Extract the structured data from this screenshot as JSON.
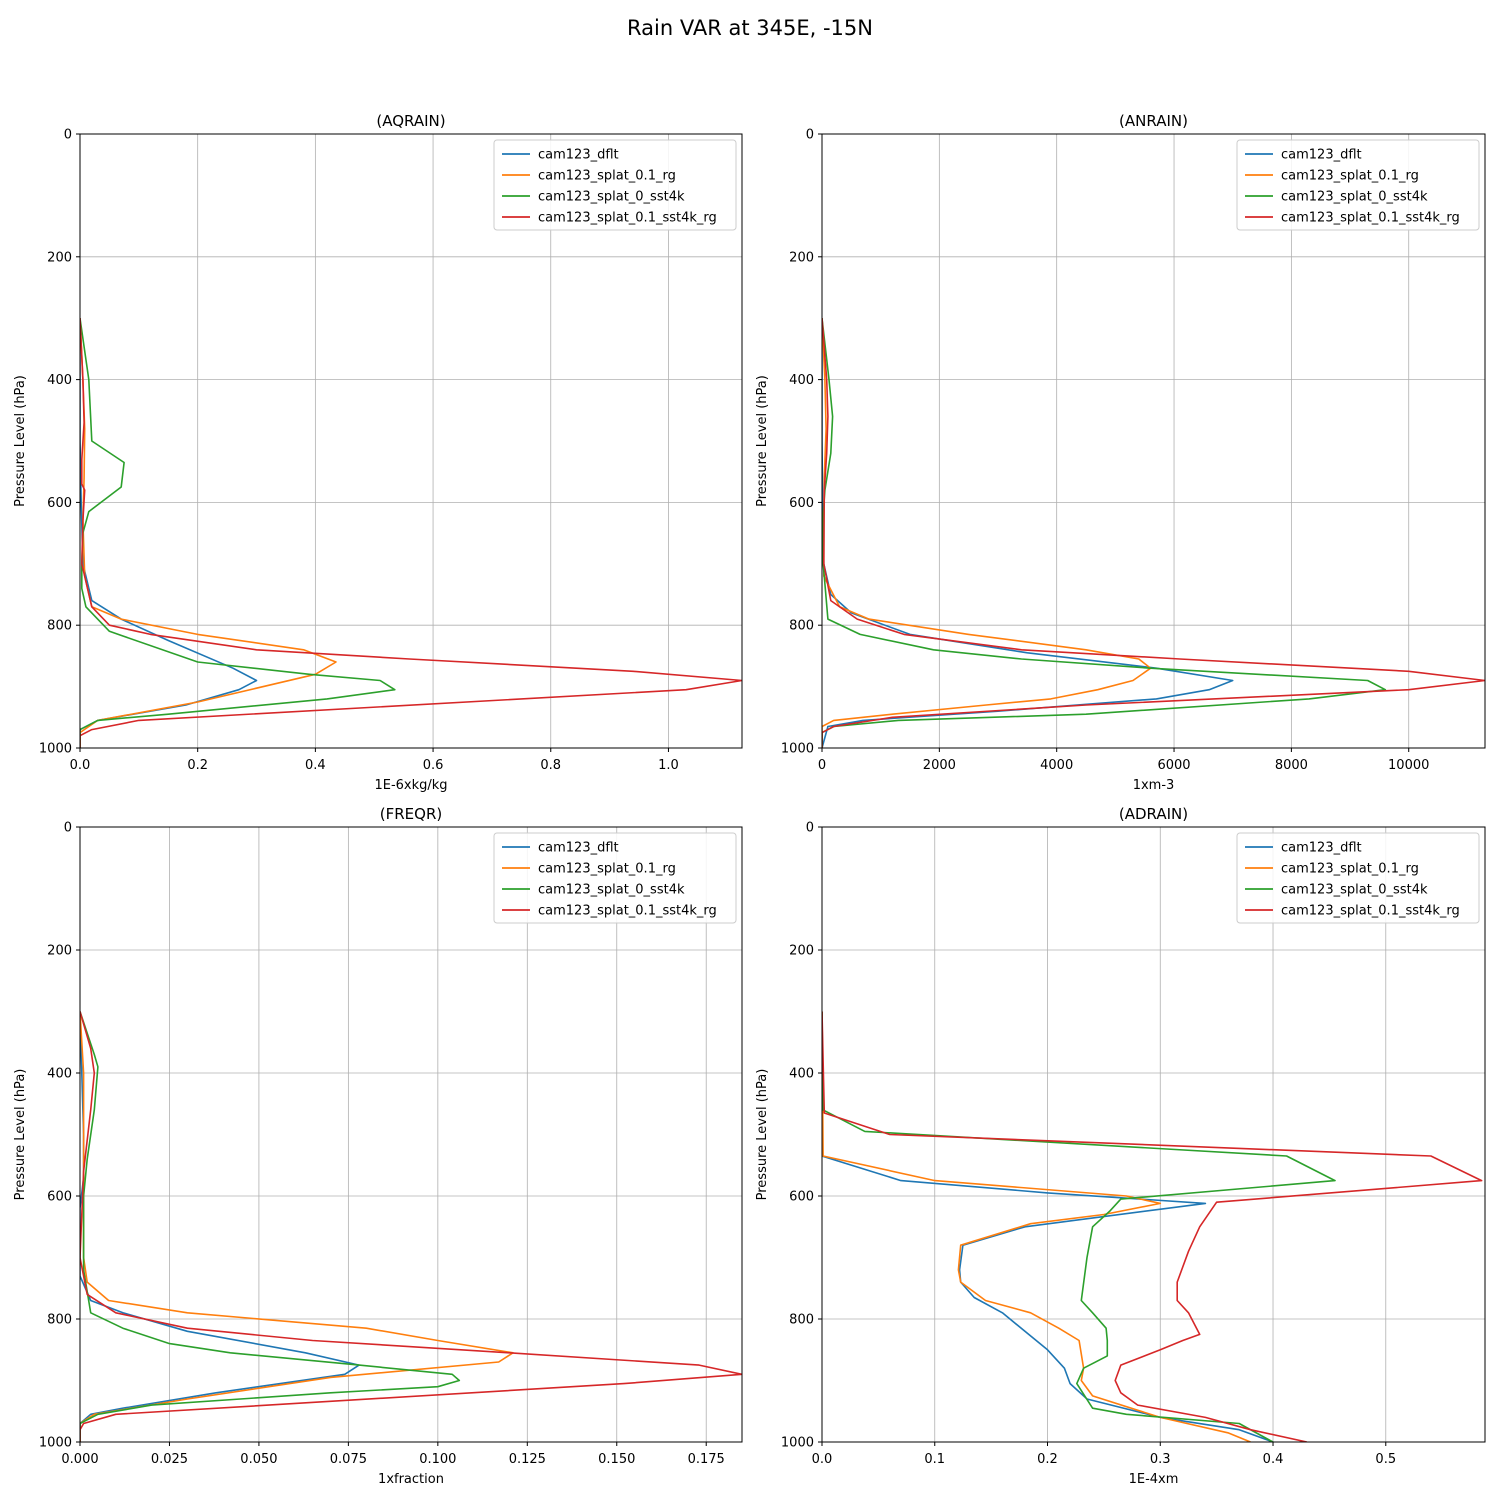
{
  "title": "Rain VAR at 345E, -15N",
  "series_colors": [
    "#1f77b4",
    "#ff7f0e",
    "#2ca02c",
    "#d62728"
  ],
  "chart_data": [
    {
      "type": "line",
      "title": "(AQRAIN)",
      "xlabel": "1E-6xkg/kg",
      "ylabel": "Pressure Level (hPa)",
      "xlim": [
        0,
        1.125
      ],
      "ylim": [
        1000,
        0
      ],
      "xticks": [
        0,
        0.2,
        0.4,
        0.6,
        0.8,
        1.0
      ],
      "xtick_labels": [
        "0.0",
        "0.2",
        "0.4",
        "0.6",
        "0.8",
        "1.0"
      ],
      "yticks": [
        0,
        200,
        400,
        600,
        800,
        1000
      ],
      "ytick_labels": [
        "0",
        "200",
        "400",
        "600",
        "800",
        "1000"
      ],
      "grid": true,
      "legend": "top-right",
      "series": [
        {
          "name": "cam123_dflt",
          "x": [
            0,
            0,
            0.002,
            0.005,
            0.02,
            0.07,
            0.15,
            0.26,
            0.3,
            0.27,
            0.18,
            0.03,
            0,
            0
          ],
          "y": [
            300,
            500,
            600,
            700,
            760,
            790,
            825,
            870,
            890,
            905,
            930,
            955,
            970,
            1000
          ]
        },
        {
          "name": "cam123_splat_0.1_rg",
          "x": [
            0,
            0.005,
            0.008,
            0.007,
            0.005,
            0.008,
            0.02,
            0.07,
            0.2,
            0.38,
            0.435,
            0.4,
            0.2,
            0.03,
            0,
            0
          ],
          "y": [
            300,
            400,
            480,
            560,
            630,
            720,
            770,
            790,
            815,
            840,
            860,
            880,
            925,
            955,
            975,
            1000
          ]
        },
        {
          "name": "cam123_splat_0_sst4k",
          "x": [
            0,
            0.015,
            0.02,
            0.075,
            0.07,
            0.015,
            0.005,
            0.003,
            0.003,
            0.01,
            0.05,
            0.2,
            0.39,
            0.51,
            0.535,
            0.42,
            0.15,
            0.03,
            0,
            0
          ],
          "y": [
            300,
            400,
            500,
            535,
            575,
            615,
            650,
            700,
            740,
            770,
            810,
            860,
            880,
            890,
            905,
            920,
            945,
            955,
            970,
            1000
          ]
        },
        {
          "name": "cam123_splat_0.1_sst4k_rg",
          "x": [
            0,
            0.005,
            0.007,
            0.003,
            0.003,
            0.008,
            0.005,
            0.003,
            0.02,
            0.05,
            0.12,
            0.3,
            0.56,
            0.94,
            1.125,
            1.03,
            0.1,
            0.02,
            0,
            0
          ],
          "y": [
            300,
            400,
            470,
            530,
            570,
            580,
            630,
            700,
            770,
            800,
            815,
            840,
            855,
            875,
            890,
            905,
            955,
            970,
            980,
            1000
          ]
        }
      ]
    },
    {
      "type": "line",
      "title": "(ANRAIN)",
      "xlabel": "1xm-3",
      "ylabel": "Pressure Level (hPa)",
      "xlim": [
        0,
        11300
      ],
      "ylim": [
        1000,
        0
      ],
      "xticks": [
        0,
        2000,
        4000,
        6000,
        8000,
        10000
      ],
      "xtick_labels": [
        "0",
        "2000",
        "4000",
        "6000",
        "8000",
        "10000"
      ],
      "yticks": [
        0,
        200,
        400,
        600,
        800,
        1000
      ],
      "ytick_labels": [
        "0",
        "200",
        "400",
        "600",
        "800",
        "1000"
      ],
      "grid": true,
      "legend": "top-right",
      "series": [
        {
          "name": "cam123_dflt",
          "x": [
            0,
            0,
            10,
            30,
            150,
            500,
            1500,
            3500,
            5700,
            7000,
            6600,
            5700,
            3000,
            700,
            100,
            0
          ],
          "y": [
            300,
            500,
            600,
            700,
            750,
            780,
            815,
            845,
            870,
            890,
            905,
            920,
            940,
            955,
            965,
            1000
          ]
        },
        {
          "name": "cam123_splat_0.1_rg",
          "x": [
            0,
            50,
            70,
            40,
            30,
            30,
            300,
            800,
            2500,
            4500,
            5400,
            5600,
            5300,
            4700,
            3900,
            2800,
            1200,
            200,
            0,
            0
          ],
          "y": [
            300,
            400,
            480,
            560,
            630,
            720,
            770,
            790,
            815,
            840,
            855,
            870,
            890,
            905,
            920,
            930,
            945,
            955,
            965,
            1000
          ]
        },
        {
          "name": "cam123_splat_0_sst4k",
          "x": [
            0,
            120,
            180,
            150,
            50,
            20,
            20,
            100,
            650,
            1900,
            3400,
            5600,
            9300,
            9600,
            8300,
            4500,
            1300,
            200,
            0,
            0
          ],
          "y": [
            300,
            400,
            460,
            520,
            580,
            620,
            700,
            790,
            815,
            840,
            855,
            870,
            890,
            905,
            920,
            945,
            955,
            965,
            975,
            1000
          ]
        },
        {
          "name": "cam123_splat_0.1_sst4k_rg",
          "x": [
            0,
            80,
            100,
            80,
            40,
            30,
            150,
            600,
            1400,
            3400,
            6100,
            10000,
            11300,
            10000,
            4500,
            1200,
            200,
            0,
            0
          ],
          "y": [
            300,
            400,
            460,
            520,
            580,
            700,
            760,
            790,
            815,
            840,
            855,
            875,
            890,
            905,
            930,
            950,
            965,
            975,
            1000
          ]
        }
      ]
    },
    {
      "type": "line",
      "title": "(FREQR)",
      "xlabel": "1xfraction",
      "ylabel": "Pressure Level (hPa)",
      "xlim": [
        0,
        0.185
      ],
      "ylim": [
        1000,
        0
      ],
      "xticks": [
        0,
        0.025,
        0.05,
        0.075,
        0.1,
        0.125,
        0.15,
        0.175
      ],
      "xtick_labels": [
        "0.000",
        "0.025",
        "0.050",
        "0.075",
        "0.100",
        "0.125",
        "0.150",
        "0.175"
      ],
      "yticks": [
        0,
        200,
        400,
        600,
        800,
        1000
      ],
      "ytick_labels": [
        "0",
        "200",
        "400",
        "600",
        "800",
        "1000"
      ],
      "grid": true,
      "legend": "top-right",
      "series": [
        {
          "name": "cam123_dflt",
          "x": [
            0,
            0.001,
            0.001,
            0,
            0,
            0.003,
            0.012,
            0.03,
            0.063,
            0.078,
            0.074,
            0.038,
            0.012,
            0.003,
            0,
            0
          ],
          "y": [
            300,
            500,
            570,
            620,
            730,
            770,
            790,
            820,
            855,
            875,
            890,
            920,
            945,
            955,
            970,
            1000
          ]
        },
        {
          "name": "cam123_splat_0.1_rg",
          "x": [
            0,
            0.001,
            0.001,
            0.001,
            0.002,
            0.008,
            0.03,
            0.08,
            0.1,
            0.121,
            0.117,
            0.07,
            0.03,
            0.004,
            0,
            0
          ],
          "y": [
            300,
            400,
            500,
            700,
            740,
            770,
            790,
            815,
            835,
            855,
            870,
            895,
            930,
            955,
            970,
            1000
          ]
        },
        {
          "name": "cam123_splat_0_sst4k",
          "x": [
            0,
            0.004,
            0.005,
            0.004,
            0.002,
            0.001,
            0.001,
            0.003,
            0.012,
            0.025,
            0.042,
            0.078,
            0.104,
            0.106,
            0.1,
            0.07,
            0.02,
            0.005,
            0,
            0
          ],
          "y": [
            300,
            370,
            390,
            460,
            540,
            600,
            720,
            790,
            815,
            840,
            855,
            875,
            890,
            900,
            910,
            920,
            940,
            955,
            970,
            1000
          ]
        },
        {
          "name": "cam123_splat_0.1_sst4k_rg",
          "x": [
            0,
            0.003,
            0.004,
            0.003,
            0.001,
            0,
            0.002,
            0.01,
            0.03,
            0.065,
            0.12,
            0.173,
            0.185,
            0.152,
            0.01,
            0.001,
            0,
            0
          ],
          "y": [
            300,
            360,
            400,
            460,
            560,
            700,
            760,
            790,
            815,
            835,
            855,
            875,
            890,
            905,
            955,
            970,
            980,
            1000
          ]
        }
      ]
    },
    {
      "type": "line",
      "title": "(ADRAIN)",
      "xlabel": "1E-4xm",
      "ylabel": "Pressure Level (hPa)",
      "xlim": [
        0,
        0.588
      ],
      "ylim": [
        1000,
        0
      ],
      "xticks": [
        0,
        0.1,
        0.2,
        0.3,
        0.4,
        0.5
      ],
      "xtick_labels": [
        "0.0",
        "0.1",
        "0.2",
        "0.3",
        "0.4",
        "0.5"
      ],
      "yticks": [
        0,
        200,
        400,
        600,
        800,
        1000
      ],
      "ytick_labels": [
        "0",
        "200",
        "400",
        "600",
        "800",
        "1000"
      ],
      "grid": true,
      "legend": "top-right",
      "series": [
        {
          "name": "cam123_dflt",
          "x": [
            0,
            0,
            0.07,
            0.2,
            0.34,
            0.18,
            0.125,
            0.122,
            0.123,
            0.135,
            0.16,
            0.2,
            0.215,
            0.22,
            0.235,
            0.3,
            0.37,
            0.4
          ],
          "y": [
            300,
            535,
            575,
            595,
            612,
            650,
            680,
            720,
            740,
            765,
            790,
            850,
            880,
            905,
            930,
            960,
            980,
            1000
          ]
        },
        {
          "name": "cam123_splat_0.1_rg",
          "x": [
            0,
            0.001,
            0.1,
            0.27,
            0.3,
            0.25,
            0.185,
            0.123,
            0.121,
            0.123,
            0.145,
            0.185,
            0.21,
            0.228,
            0.232,
            0.23,
            0.24,
            0.3,
            0.36,
            0.38
          ],
          "y": [
            300,
            535,
            575,
            600,
            612,
            630,
            645,
            680,
            720,
            740,
            770,
            790,
            815,
            835,
            880,
            900,
            925,
            960,
            985,
            1000
          ]
        },
        {
          "name": "cam123_splat_0_sst4k",
          "x": [
            0,
            0.001,
            0.038,
            0.412,
            0.455,
            0.265,
            0.255,
            0.24,
            0.235,
            0.23,
            0.24,
            0.252,
            0.253,
            0.253,
            0.232,
            0.226,
            0.24,
            0.27,
            0.37,
            0.4
          ],
          "y": [
            300,
            460,
            495,
            535,
            575,
            605,
            625,
            650,
            700,
            770,
            790,
            815,
            835,
            860,
            880,
            905,
            945,
            955,
            970,
            1000
          ]
        },
        {
          "name": "cam123_splat_0.1_sst4k_rg",
          "x": [
            0,
            0.002,
            0.06,
            0.54,
            0.585,
            0.35,
            0.335,
            0.325,
            0.315,
            0.315,
            0.325,
            0.335,
            0.32,
            0.3,
            0.265,
            0.26,
            0.265,
            0.28,
            0.34,
            0.38,
            0.43
          ],
          "y": [
            300,
            465,
            500,
            535,
            575,
            610,
            650,
            690,
            740,
            770,
            790,
            825,
            835,
            850,
            875,
            900,
            920,
            940,
            960,
            980,
            1000
          ]
        }
      ]
    }
  ]
}
